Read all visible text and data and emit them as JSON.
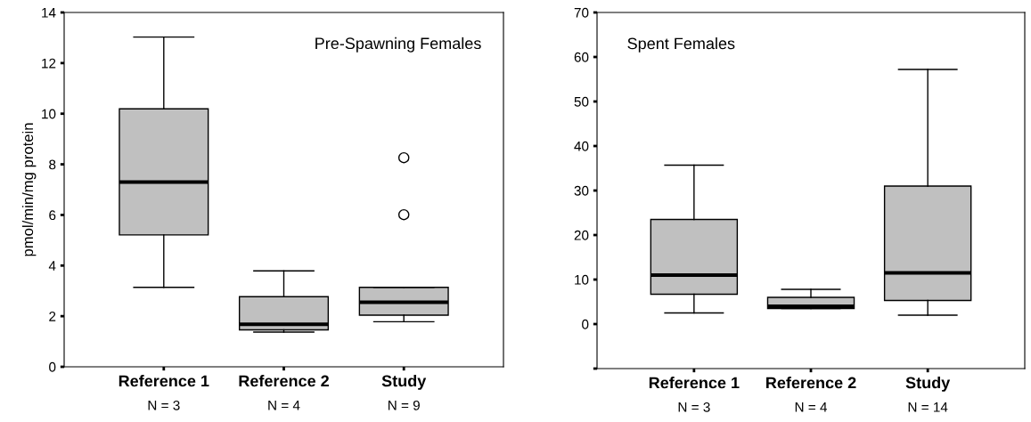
{
  "chart_data": [
    {
      "type": "box",
      "title": "Pre-Spawning Females",
      "ylabel": "pmol/min/mg protein",
      "categories": [
        "Reference 1",
        "Reference 2",
        "Study"
      ],
      "color": "#c0c0c0",
      "boxes": [
        {
          "low": 3.14,
          "q1": 5.21,
          "median": 7.3,
          "q3": 10.19,
          "high": 13.03
        },
        {
          "low": 1.37,
          "q1": 1.46,
          "median": 1.68,
          "q3": 2.77,
          "high": 3.79
        },
        {
          "low": 1.78,
          "q1": 2.04,
          "median": 2.55,
          "q3": 3.14,
          "high": 3.14,
          "outliers": [
            6.01,
            8.26
          ]
        }
      ],
      "ylim": [
        0,
        14
      ],
      "yticks": [
        0,
        2,
        4,
        6,
        8,
        10,
        12,
        14
      ],
      "grid": false,
      "annotations": [
        "N = 3",
        "N = 4",
        "N = 9"
      ]
    },
    {
      "type": "box",
      "title": "Spent Females",
      "categories": [
        "Reference 1",
        "Reference 2",
        "Study"
      ],
      "color": "#c0c0c0",
      "boxes": [
        {
          "low": 2.5,
          "q1": 6.7,
          "median": 11.0,
          "q3": 23.5,
          "high": 35.7
        },
        {
          "low": 3.5,
          "q1": 3.5,
          "median": 4.0,
          "q3": 6.0,
          "high": 7.8
        },
        {
          "low": 2.0,
          "q1": 5.3,
          "median": 11.5,
          "q3": 31.0,
          "high": 57.2
        }
      ],
      "ylim": [
        -10,
        70
      ],
      "yticks": [
        {
          "value": -10,
          "label": null
        },
        0,
        10,
        20,
        30,
        40,
        50,
        60,
        70
      ],
      "grid": false,
      "annotations": [
        "N = 3",
        "N = 4",
        "N = 14"
      ]
    }
  ]
}
